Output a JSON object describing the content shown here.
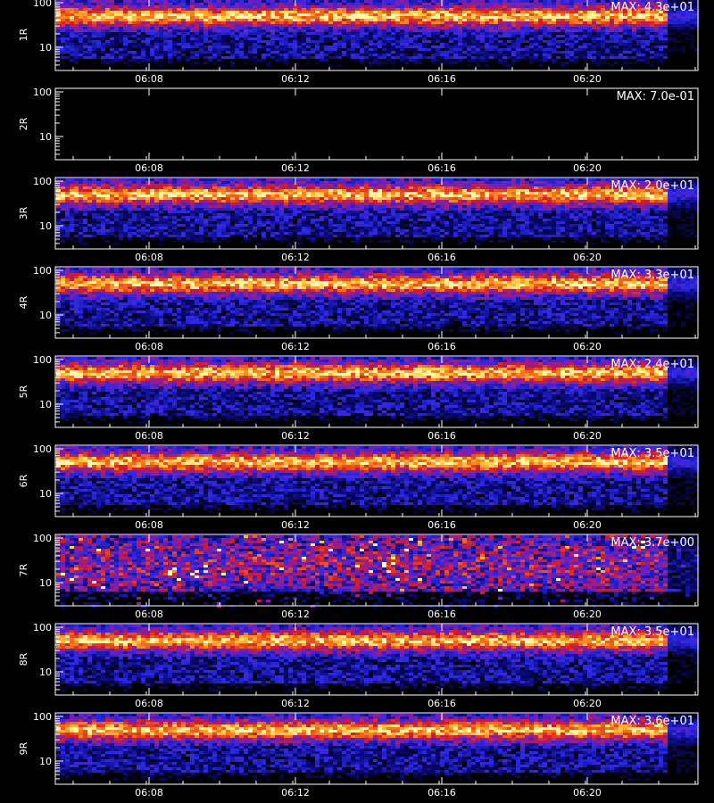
{
  "chart_data": [
    {
      "type": "heatmap",
      "channel": "1R",
      "max_label": "MAX: 4.3e+01",
      "max_value": 43.0,
      "band": "mid",
      "colorscale": "blue-red-yellow",
      "x_ticks": [
        "06:08",
        "06:12",
        "06:16",
        "06:20"
      ],
      "y_ticks": [
        "100",
        "10"
      ],
      "ylim": [
        3,
        100
      ],
      "y_scale": "log"
    },
    {
      "type": "heatmap",
      "channel": "2R",
      "max_label": "MAX: 7.0e-01",
      "max_value": 0.7,
      "band": "empty",
      "colorscale": "blue-red-yellow",
      "x_ticks": [
        "06:08",
        "06:12",
        "06:16",
        "06:20"
      ],
      "y_ticks": [
        "100",
        "10"
      ],
      "ylim": [
        3,
        100
      ],
      "y_scale": "log"
    },
    {
      "type": "heatmap",
      "channel": "3R",
      "max_label": "MAX: 2.0e+01",
      "max_value": 20.0,
      "band": "mid",
      "colorscale": "blue-red-yellow",
      "x_ticks": [
        "06:08",
        "06:12",
        "06:16",
        "06:20"
      ],
      "y_ticks": [
        "100",
        "10"
      ],
      "ylim": [
        3,
        100
      ],
      "y_scale": "log"
    },
    {
      "type": "heatmap",
      "channel": "4R",
      "max_label": "MAX: 3.3e+01",
      "max_value": 33.0,
      "band": "mid",
      "colorscale": "blue-red-yellow",
      "x_ticks": [
        "06:08",
        "06:12",
        "06:16",
        "06:20"
      ],
      "y_ticks": [
        "100",
        "10"
      ],
      "ylim": [
        3,
        100
      ],
      "y_scale": "log"
    },
    {
      "type": "heatmap",
      "channel": "5R",
      "max_label": "MAX: 2.4e+01",
      "max_value": 24.0,
      "band": "mid",
      "colorscale": "blue-red-yellow",
      "x_ticks": [
        "06:08",
        "06:12",
        "06:16",
        "06:20"
      ],
      "y_ticks": [
        "100",
        "10"
      ],
      "ylim": [
        3,
        100
      ],
      "y_scale": "log"
    },
    {
      "type": "heatmap",
      "channel": "6R",
      "max_label": "MAX: 3.5e+01",
      "max_value": 35.0,
      "band": "mid",
      "colorscale": "blue-red-yellow",
      "x_ticks": [
        "06:08",
        "06:12",
        "06:16",
        "06:20"
      ],
      "y_ticks": [
        "100",
        "10"
      ],
      "ylim": [
        3,
        100
      ],
      "y_scale": "log"
    },
    {
      "type": "heatmap",
      "channel": "7R",
      "max_label": "MAX: 3.7e+00",
      "max_value": 3.7,
      "band": "diffuse",
      "colorscale": "blue-red-yellow",
      "x_ticks": [
        "06:08",
        "06:12",
        "06:16",
        "06:20"
      ],
      "y_ticks": [
        "100",
        "10"
      ],
      "ylim": [
        3,
        100
      ],
      "y_scale": "log"
    },
    {
      "type": "heatmap",
      "channel": "8R",
      "max_label": "MAX: 3.5e+01",
      "max_value": 35.0,
      "band": "mid",
      "colorscale": "blue-red-yellow",
      "x_ticks": [
        "06:08",
        "06:12",
        "06:16",
        "06:20"
      ],
      "y_ticks": [
        "100",
        "10"
      ],
      "ylim": [
        3,
        100
      ],
      "y_scale": "log"
    },
    {
      "type": "heatmap",
      "channel": "9R",
      "max_label": "MAX: 3.6e+01",
      "max_value": 36.0,
      "band": "mid",
      "colorscale": "blue-red-yellow",
      "x_ticks": [
        "06:08",
        "06:12",
        "06:16",
        "06:20"
      ],
      "y_ticks": [
        "100",
        "10"
      ],
      "ylim": [
        3,
        100
      ],
      "y_scale": "log"
    }
  ]
}
